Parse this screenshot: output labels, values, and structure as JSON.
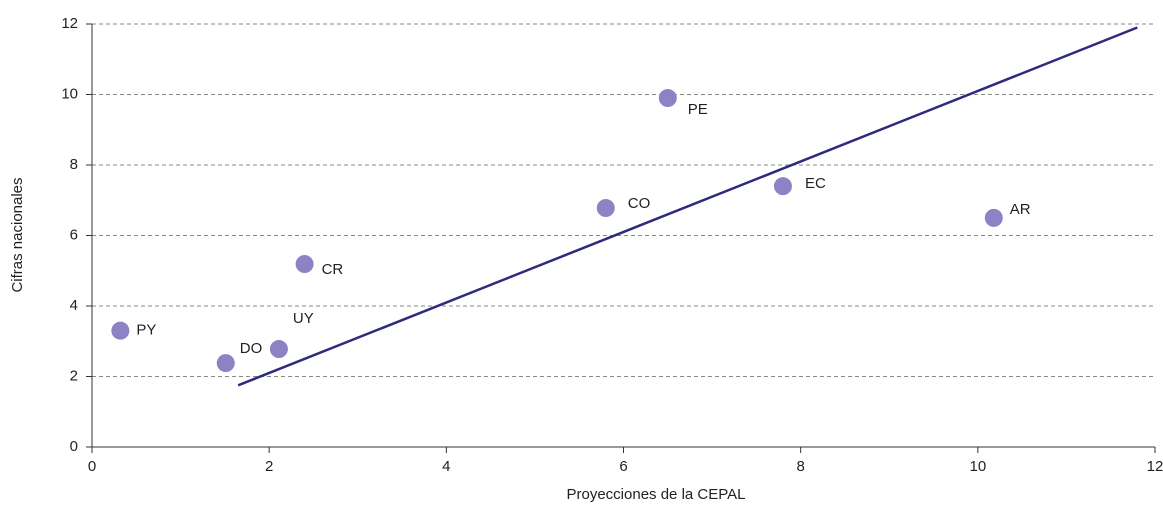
{
  "chart_data": {
    "type": "scatter",
    "x_label": "Proyecciones de la CEPAL",
    "y_label": "Cifras nacionales",
    "series": [
      {
        "x": [
          0.32,
          1.51,
          2.11,
          2.4,
          5.8,
          6.5,
          7.8,
          10.18
        ],
        "values": [
          3.3,
          2.38,
          2.78,
          5.19,
          6.78,
          9.9,
          7.4,
          6.5
        ],
        "point_labels": [
          "PY",
          "DO",
          "UY",
          "CR",
          "CO",
          "PE",
          "EC",
          "AR"
        ],
        "color": "#8b83c3"
      }
    ],
    "reference_line": {
      "x": [
        1.65,
        11.8
      ],
      "values": [
        1.75,
        11.9
      ],
      "color": "#2e2a7e"
    },
    "xlim": [
      0,
      12
    ],
    "xticks": [
      0,
      2,
      4,
      6,
      8,
      10,
      12
    ],
    "ylim": [
      0,
      12
    ],
    "yticks": [
      0,
      2,
      4,
      6,
      8,
      10,
      12
    ],
    "grid": true
  }
}
